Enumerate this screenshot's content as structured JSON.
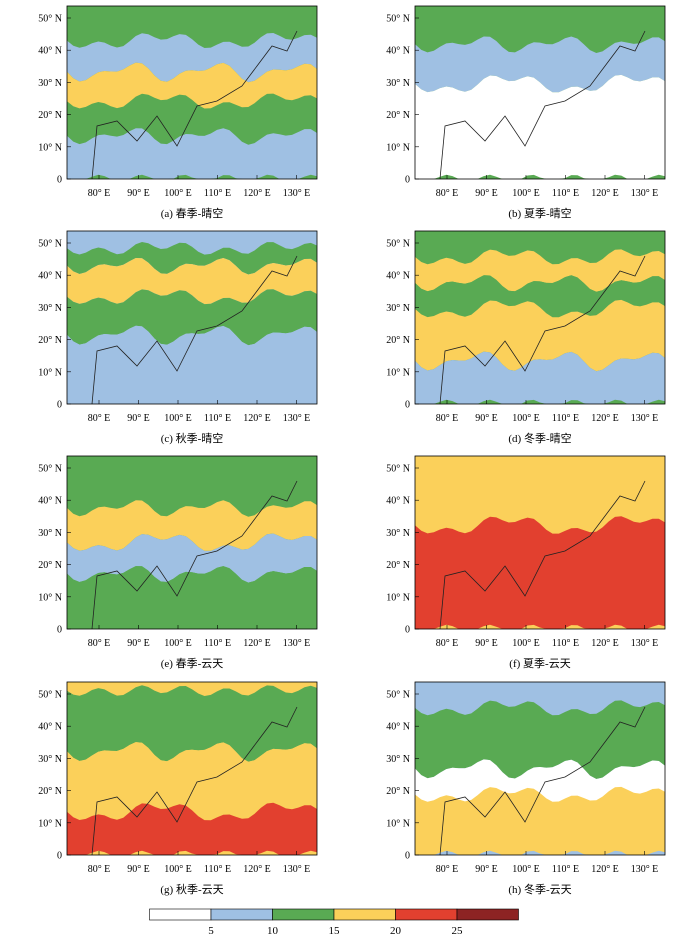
{
  "panels": [
    {
      "caption": "(a) 春季-晴空"
    },
    {
      "caption": "(b) 夏季-晴空"
    },
    {
      "caption": "(c) 秋季-晴空"
    },
    {
      "caption": "(d) 冬季-晴空"
    },
    {
      "caption": "(e) 春季-云天"
    },
    {
      "caption": "(f) 夏季-云天"
    },
    {
      "caption": "(g) 秋季-云天"
    },
    {
      "caption": "(h) 冬季-云天"
    }
  ],
  "axes": {
    "y_ticks": [
      "50° N",
      "40° N",
      "30° N",
      "20° N",
      "10° N",
      "0"
    ],
    "x_ticks": [
      "80° E",
      "90° E",
      "100° E",
      "110° E",
      "120° E",
      "130° E"
    ]
  },
  "legend": {
    "labels": [
      "5",
      "10",
      "15",
      "20",
      "25"
    ],
    "colors": [
      "#ffffff",
      "#9fc0e3",
      "#59aa53",
      "#fbd05a",
      "#e2402f",
      "#8d2323"
    ]
  }
}
